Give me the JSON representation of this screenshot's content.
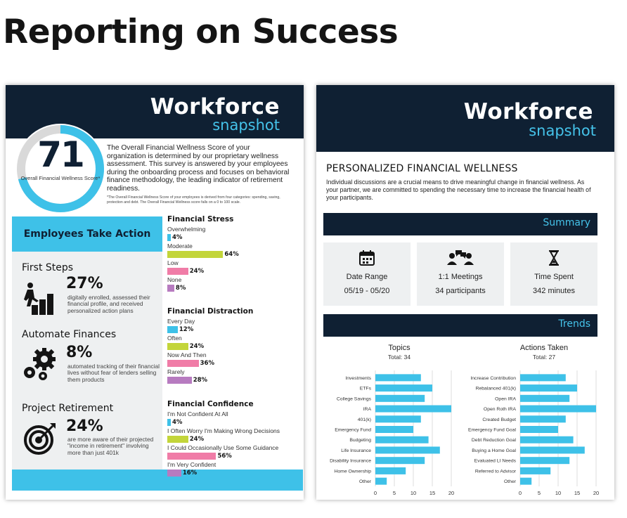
{
  "page_title": "Reporting on Success",
  "colors": {
    "navy": "#0f2033",
    "cyan": "#3ec1e8",
    "lime": "#c3d53a",
    "pink": "#f07ca7",
    "purple": "#b77bc0",
    "panel": "#eef0f1"
  },
  "brand": {
    "word": "Workforce",
    "sub": "snapshot"
  },
  "left_card": {
    "score": {
      "value": "71",
      "fraction": 0.71,
      "caption": "Overall Financial Wellness Score*",
      "description": "The Overall Financial Wellness Score of your organization is determined by our proprietary wellness assessment. This survey is answered by your employees during the onboarding process and focuses on behavioral finance methodology, the leading indicator of retirement readiness.",
      "footnote": "*The Overall Financial Wellness Score of your employees is derived from four categories: spending, saving, protection and debt. The Overall Financial Wellness score falls on a 0 to 100 scale."
    },
    "actions": {
      "heading": "Employees Take Action",
      "items": [
        {
          "title": "First Steps",
          "pct": "27%",
          "text": "digitally enrolled, assessed their financial profile, and received personalized action plans",
          "icon": "climbing-steps-icon"
        },
        {
          "title": "Automate Finances",
          "pct": "8%",
          "text": "automated tracking of their financial lives without fear of lenders selling them products",
          "icon": "gears-icon"
        },
        {
          "title": "Project Retirement",
          "pct": "24%",
          "text": "are more aware of their projected \"income in retirement\" involving more than just 401k",
          "icon": "target-icon"
        }
      ]
    },
    "stats": [
      {
        "title": "Financial Stress",
        "rows": [
          {
            "label": "Overwhelming",
            "value": 4,
            "display": "4%"
          },
          {
            "label": "Moderate",
            "value": 64,
            "display": "64%"
          },
          {
            "label": "Low",
            "value": 24,
            "display": "24%"
          },
          {
            "label": "None",
            "value": 8,
            "display": "8%"
          }
        ]
      },
      {
        "title": "Financial Distraction",
        "rows": [
          {
            "label": "Every Day",
            "value": 12,
            "display": "12%"
          },
          {
            "label": "Often",
            "value": 24,
            "display": "24%"
          },
          {
            "label": "Now And Then",
            "value": 36,
            "display": "36%"
          },
          {
            "label": "Rarely",
            "value": 28,
            "display": "28%"
          }
        ]
      },
      {
        "title": "Financial Confidence",
        "rows": [
          {
            "label": "I'm Not Confident At All",
            "value": 4,
            "display": "4%"
          },
          {
            "label": "I Often Worry I'm Making Wrong Decisions",
            "value": 24,
            "display": "24%"
          },
          {
            "label": "I Could Occasionally Use Some Guidance",
            "value": 56,
            "display": "56%"
          },
          {
            "label": "I'm Very Confident",
            "value": 16,
            "display": "16%"
          }
        ]
      }
    ]
  },
  "right_card": {
    "title": "PERSONALIZED FINANCIAL WELLNESS",
    "text": "Individual discussions are a crucial means to drive meaningful change in financial wellness.  As your partner, we are committed to spending the necessary time to increase the financial health of your participants.",
    "summary_label": "Summary",
    "tiles": [
      {
        "icon": "calendar-icon",
        "label": "Date Range",
        "value": "05/19 - 05/20"
      },
      {
        "icon": "meeting-people-icon",
        "label": "1:1 Meetings",
        "value": "34 participants"
      },
      {
        "icon": "hourglass-icon",
        "label": "Time Spent",
        "value": "342 minutes"
      }
    ],
    "trends_label": "Trends"
  },
  "chart_data": [
    {
      "type": "bar",
      "orientation": "horizontal",
      "title": "Topics",
      "subtitle": "Total: 34",
      "categories": [
        "Investments",
        "ETFs",
        "College Savings",
        "IRA",
        "401(k)",
        "Emergency Fund",
        "Budgeting",
        "Life Insurance",
        "Disability Insurance",
        "Home Ownership",
        "Other"
      ],
      "values": [
        12,
        15,
        13,
        20,
        12,
        10,
        14,
        17,
        13,
        8,
        3
      ],
      "xlim": [
        0,
        20
      ],
      "xticks": [
        0,
        5,
        10,
        15,
        20
      ],
      "grid": true
    },
    {
      "type": "bar",
      "orientation": "horizontal",
      "title": "Actions Taken",
      "subtitle": "Total: 27",
      "categories": [
        "Increase Contribution",
        "Rebalanced 401(k)",
        "Open IRA",
        "Open Roth IRA",
        "Created Budget",
        "Emergency Fund Goal",
        "Debt Reduction Goal",
        "Buying a Home Goal",
        "Evaluated LI Needs",
        "Referred to Advisor",
        "Other"
      ],
      "values": [
        12,
        15,
        13,
        20,
        12,
        10,
        14,
        17,
        13,
        8,
        3
      ],
      "xlim": [
        0,
        20
      ],
      "xticks": [
        0,
        5,
        10,
        15,
        20
      ],
      "grid": true
    }
  ]
}
